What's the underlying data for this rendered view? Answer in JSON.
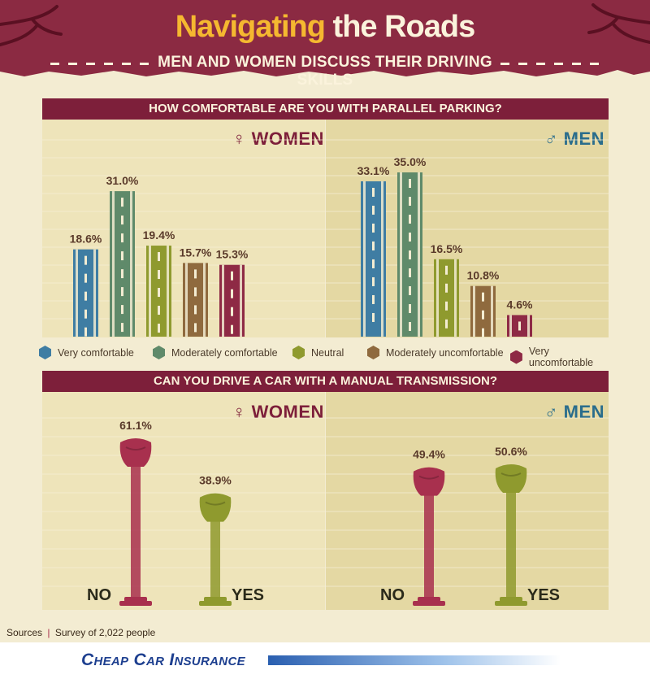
{
  "header": {
    "title_part1": "Navigating",
    "title_part2": "the Roads",
    "subtitle": "MEN AND WOMEN DISCUSS THEIR DRIVING SKILLS"
  },
  "parallel": {
    "question": "HOW COMFORTABLE ARE YOU WITH PARALLEL PARKING?",
    "women_label": "♀ WOMEN",
    "men_label": "♂ MEN"
  },
  "manual": {
    "question": "CAN YOU DRIVE A CAR WITH A MANUAL TRANSMISSION?",
    "women_label": "♀ WOMEN",
    "men_label": "♂ MEN",
    "no_label": "NO",
    "yes_label": "YES"
  },
  "legend": [
    {
      "label": "Very comfortable",
      "color": "#3f7da3"
    },
    {
      "label": "Moderately comfortable",
      "color": "#5f8a6a"
    },
    {
      "label": "Neutral",
      "color": "#8f9a2e"
    },
    {
      "label": "Moderately uncomfortable",
      "color": "#8f6a3e"
    },
    {
      "label": "Very uncomfortable",
      "color": "#8e2a45"
    }
  ],
  "footer": {
    "sources": "Sources",
    "divider": "|",
    "survey": "Survey of 2,022 people",
    "brand": "Cheap Car Insurance"
  },
  "chart_data": [
    {
      "type": "bar",
      "title": "HOW COMFORTABLE ARE YOU WITH PARALLEL PARKING?",
      "categories": [
        "Very comfortable",
        "Moderately comfortable",
        "Neutral",
        "Moderately uncomfortable",
        "Very uncomfortable"
      ],
      "series": [
        {
          "name": "WOMEN",
          "values": [
            18.6,
            31.0,
            19.4,
            15.7,
            15.3
          ],
          "labels": [
            "18.6%",
            "31.0%",
            "19.4%",
            "15.7%",
            "15.3%"
          ]
        },
        {
          "name": "MEN",
          "values": [
            33.1,
            35.0,
            16.5,
            10.8,
            4.6
          ],
          "labels": [
            "33.1%",
            "35.0%",
            "16.5%",
            "10.8%",
            "4.6%"
          ]
        }
      ],
      "colors": [
        "#3f7da3",
        "#5f8a6a",
        "#8f9a2e",
        "#8f6a3e",
        "#8e2a45"
      ],
      "ylim": [
        0,
        35
      ]
    },
    {
      "type": "bar",
      "title": "CAN YOU DRIVE A CAR WITH A MANUAL TRANSMISSION?",
      "categories": [
        "NO",
        "YES"
      ],
      "series": [
        {
          "name": "WOMEN",
          "values": [
            61.1,
            38.9
          ],
          "labels": [
            "61.1%",
            "38.9%"
          ]
        },
        {
          "name": "MEN",
          "values": [
            49.4,
            50.6
          ],
          "labels": [
            "49.4%",
            "50.6%"
          ]
        }
      ],
      "colors": [
        "#a8304e",
        "#8f9a2e"
      ],
      "ylim": [
        0,
        61.1
      ]
    }
  ]
}
